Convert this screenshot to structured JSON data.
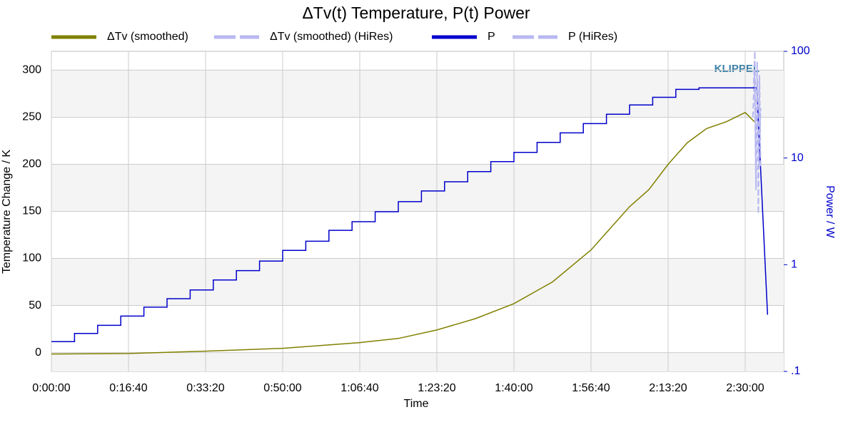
{
  "chart_data": {
    "type": "line",
    "title": "ΔTv(t) Temperature, P(t) Power",
    "x_label": "Time",
    "y_label": "Temperature Change / K",
    "y2_label": "Power / W",
    "annotation": "KLIPPEL",
    "grid": true,
    "y2_log": true,
    "xlim": [
      0,
      9500
    ],
    "xticks": [
      {
        "value": 0,
        "label": "0:00:00"
      },
      {
        "value": 1000,
        "label": "0:16:40"
      },
      {
        "value": 2000,
        "label": "0:33:20"
      },
      {
        "value": 3000,
        "label": "0:50:00"
      },
      {
        "value": 4000,
        "label": "1:06:40"
      },
      {
        "value": 5000,
        "label": "1:23:20"
      },
      {
        "value": 6000,
        "label": "1:40:00"
      },
      {
        "value": 7000,
        "label": "1:56:40"
      },
      {
        "value": 8000,
        "label": "2:13:20"
      },
      {
        "value": 9000,
        "label": "2:30:00"
      }
    ],
    "ylim": [
      -20,
      320
    ],
    "yticks": [
      0,
      50,
      100,
      150,
      200,
      250,
      300
    ],
    "y2lim": [
      0.1,
      100
    ],
    "y2ticks": [
      {
        "value": 0.1,
        "label": ".1"
      },
      1,
      10,
      100
    ],
    "series": [
      {
        "name": "ΔTv (smoothed)",
        "color": "#808000",
        "dashed": false,
        "x": [
          0,
          1000,
          2000,
          3000,
          4000,
          4500,
          5000,
          5500,
          6000,
          6500,
          7000,
          7250,
          7500,
          7750,
          8000,
          8250,
          8500,
          8750,
          9000,
          9120
        ],
        "values": [
          -1.5,
          -1,
          1.5,
          4.5,
          10.6,
          15,
          24,
          36,
          52,
          75,
          109,
          132,
          155,
          173,
          200,
          223,
          238,
          245,
          255,
          245
        ]
      },
      {
        "name": "ΔTv (smoothed) (HiRes)",
        "color": "#b8b8f0",
        "dashed": true,
        "x": [
          9100,
          9120,
          9140,
          9160,
          9180,
          9200
        ],
        "values": [
          250,
          300,
          180,
          290,
          200,
          260
        ]
      },
      {
        "name": "P",
        "color": "#0000cc",
        "dashed": false,
        "axis": "y2",
        "x": [
          0,
          300,
          300,
          600,
          600,
          900,
          900,
          1200,
          1200,
          1500,
          1500,
          1800,
          1800,
          2100,
          2100,
          2400,
          2400,
          2700,
          2700,
          3000,
          3000,
          3300,
          3300,
          3600,
          3600,
          3900,
          3900,
          4200,
          4200,
          4500,
          4500,
          4800,
          4800,
          5100,
          5100,
          5400,
          5400,
          5700,
          5700,
          6000,
          6000,
          6300,
          6300,
          6600,
          6600,
          6900,
          6900,
          7200,
          7200,
          7500,
          7500,
          7800,
          7800,
          8100,
          8100,
          8400,
          8400,
          9150,
          9290
        ],
        "values": [
          0.19,
          0.19,
          0.227,
          0.227,
          0.27,
          0.27,
          0.33,
          0.33,
          0.4,
          0.4,
          0.48,
          0.48,
          0.58,
          0.58,
          0.72,
          0.72,
          0.88,
          0.88,
          1.08,
          1.08,
          1.36,
          1.36,
          1.66,
          1.66,
          2.1,
          2.1,
          2.53,
          2.53,
          3.14,
          3.14,
          3.9,
          3.9,
          4.91,
          4.91,
          5.99,
          5.99,
          7.45,
          7.45,
          9.25,
          9.25,
          11.3,
          11.3,
          14,
          14,
          17.2,
          17.2,
          21,
          21,
          25.7,
          25.7,
          31.4,
          31.4,
          37.1,
          37.1,
          44,
          44,
          45.4,
          45.4,
          0.34
        ]
      },
      {
        "name": "P (HiRes)",
        "color": "#b8b8f0",
        "dashed": true,
        "axis": "y2",
        "x": [
          9110,
          9125,
          9140,
          9155,
          9170,
          9185,
          9200
        ],
        "values": [
          50,
          100,
          5,
          80,
          3,
          60,
          8
        ]
      }
    ]
  }
}
